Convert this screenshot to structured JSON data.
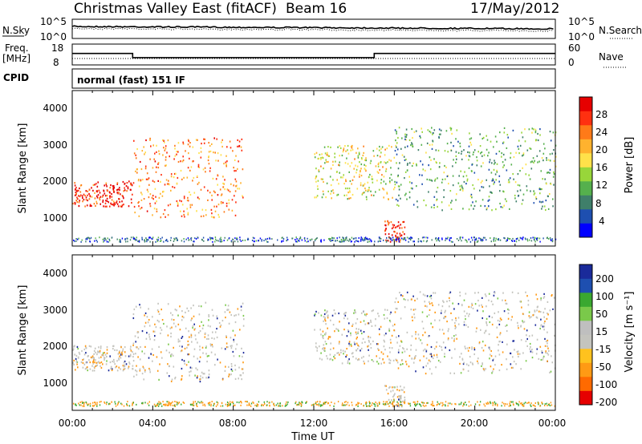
{
  "header": {
    "radar_title": "Christmas Valley East (fitACF)",
    "beam_label": "Beam 16",
    "date_label": "17/May/2012"
  },
  "strips": {
    "nsky": {
      "label": "N.Sky",
      "ticks": [
        "10^5",
        "10^0"
      ],
      "right_label": "N.Search",
      "right_ticks": [
        "10^5",
        "10^0"
      ]
    },
    "freq": {
      "label_line1": "Freq.",
      "label_line2": "[MHz]",
      "ticks": [
        "18",
        "8"
      ],
      "right_label": "Nave",
      "right_ticks": [
        "60",
        "0"
      ]
    },
    "cpid": {
      "label": "CPID",
      "value": "normal (fast) 151 IF"
    }
  },
  "panels": {
    "power": {
      "ylabel": "Slant Range [km]",
      "yticks": [
        "4000",
        "3000",
        "2000",
        "1000"
      ],
      "colorbar_label": "Power [dB]",
      "colorbar_ticks": [
        "28",
        "24",
        "20",
        "16",
        "12",
        "8",
        "4"
      ]
    },
    "velocity": {
      "ylabel": "Slant Range [km]",
      "yticks": [
        "4000",
        "3000",
        "2000",
        "1000"
      ],
      "colorbar_label": "Velocity [m s⁻¹]",
      "colorbar_ticks": [
        "200",
        "100",
        "50",
        "15",
        "-15",
        "-50",
        "-100",
        "-200"
      ]
    }
  },
  "xaxis": {
    "label": "Time UT",
    "ticks": [
      "00:00",
      "04:00",
      "08:00",
      "12:00",
      "16:00",
      "20:00",
      "00:00"
    ]
  },
  "chart_data": [
    {
      "type": "line",
      "name": "sky-noise",
      "x_range_hours": [
        0,
        24
      ],
      "ylim": [
        "10^0",
        "10^5"
      ],
      "yscale": "log"
    },
    {
      "type": "line",
      "name": "frequency",
      "x": [
        0,
        3,
        3,
        15,
        15,
        24
      ],
      "values": [
        13.5,
        13.5,
        11.5,
        11.5,
        13.5,
        13.5
      ],
      "ylim": [
        8,
        18
      ]
    },
    {
      "type": "heatmap",
      "name": "power",
      "x_range_hours": [
        0,
        24
      ],
      "ylim": [
        180,
        4500
      ],
      "colorbar": {
        "min": 0,
        "max": 30,
        "ticks": [
          28,
          24,
          20,
          16,
          12,
          8,
          4
        ]
      },
      "colors": [
        "#0000ff",
        "#1e4fb0",
        "#3f7f6a",
        "#55b04d",
        "#98d63a",
        "#ffe14a",
        "#ffb22e",
        "#ff7a18",
        "#ff3010",
        "#e60000"
      ],
      "echo_features": [
        {
          "time_start": 0,
          "time_end": 3,
          "range_low": 1300,
          "range_high": 2000,
          "power_db": 28
        },
        {
          "time_start": 3,
          "time_end": 8.5,
          "range_low": 1000,
          "range_high": 3200,
          "power_db": 22
        },
        {
          "time_start": 12,
          "time_end": 16,
          "range_low": 1500,
          "range_high": 3000,
          "power_db": 16
        },
        {
          "time_start": 15.5,
          "time_end": 16.5,
          "range_low": 300,
          "range_high": 900,
          "power_db": 28
        },
        {
          "time_start": 16,
          "time_end": 24,
          "range_low": 1200,
          "range_high": 3500,
          "power_db": 10
        }
      ]
    },
    {
      "type": "heatmap",
      "name": "velocity",
      "x_range_hours": [
        0,
        24
      ],
      "ylim": [
        180,
        4500
      ],
      "colorbar": {
        "min": -250,
        "max": 250,
        "ticks": [
          200,
          100,
          50,
          15,
          -15,
          -50,
          -100,
          -200
        ]
      },
      "colors": [
        "#e60000",
        "#ff6a00",
        "#ff9a14",
        "#ffc21e",
        "#c4c4be",
        "#bfbfbf",
        "#7ac94a",
        "#3aa830",
        "#1e4fb0",
        "#1a2a9a"
      ]
    }
  ]
}
